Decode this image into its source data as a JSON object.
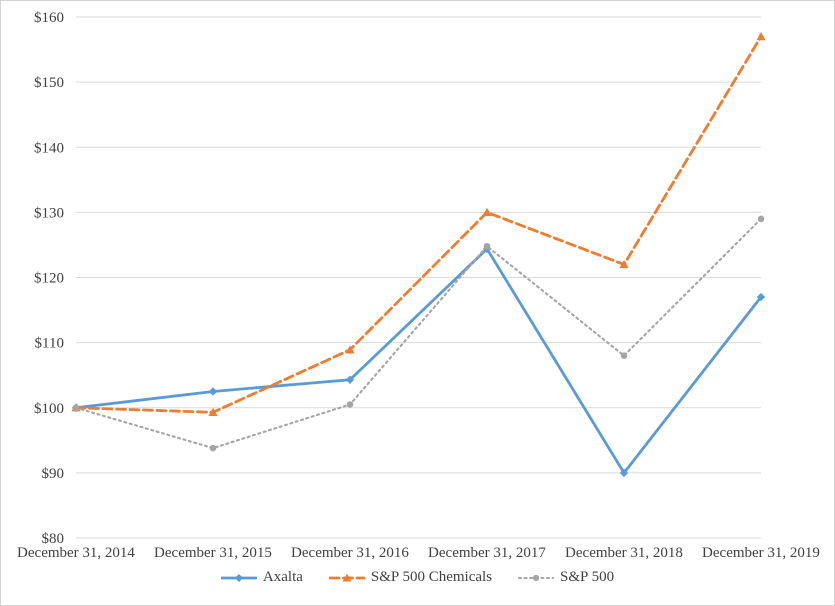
{
  "chart_data": {
    "type": "line",
    "title": "",
    "xlabel": "",
    "ylabel": "",
    "categories": [
      "December 31, 2014",
      "December 31, 2015",
      "December 31, 2016",
      "December 31, 2017",
      "December 31, 2018",
      "December 31, 2019"
    ],
    "series": [
      {
        "name": "Axalta",
        "values": [
          100,
          102.5,
          104.3,
          124.4,
          90.0,
          117.0
        ],
        "color": "#5B9BD5",
        "line_style": "solid",
        "marker": "diamond"
      },
      {
        "name": "S&P 500 Chemicals",
        "values": [
          100,
          99.3,
          108.9,
          130.0,
          122.0,
          157.0
        ],
        "color": "#ED7D31",
        "line_style": "dashed",
        "marker": "triangle"
      },
      {
        "name": "S&P 500",
        "values": [
          100,
          93.8,
          100.5,
          124.8,
          108.0,
          129.0
        ],
        "color": "#A5A5A5",
        "line_style": "dotted",
        "marker": "circle"
      }
    ],
    "ylim": [
      80,
      160
    ],
    "y_tick_step": 10,
    "y_tick_prefix": "$",
    "grid": true,
    "gridline_color": "#D9D9D9",
    "text_color": "#404040",
    "legend_position": "bottom"
  }
}
